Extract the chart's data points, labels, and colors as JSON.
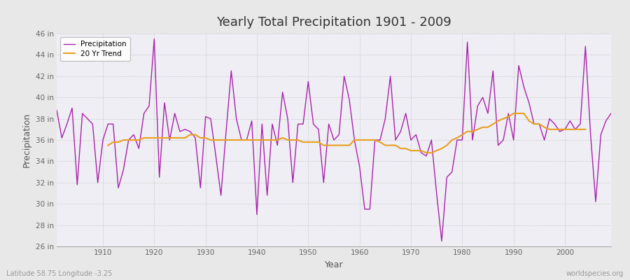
{
  "title": "Yearly Total Precipitation 1901 - 2009",
  "xlabel": "Year",
  "ylabel": "Precipitation",
  "ylim": [
    26,
    46
  ],
  "xlim": [
    1901,
    2009
  ],
  "yticks": [
    26,
    28,
    30,
    32,
    34,
    36,
    38,
    40,
    42,
    44,
    46
  ],
  "ytick_labels": [
    "26 in",
    "28 in",
    "30 in",
    "32 in",
    "34 in",
    "36 in",
    "38 in",
    "40 in",
    "42 in",
    "44 in",
    "46 in"
  ],
  "xticks": [
    1910,
    1920,
    1930,
    1940,
    1950,
    1960,
    1970,
    1980,
    1990,
    2000
  ],
  "precip_color": "#AA22AA",
  "trend_color": "#E8A020",
  "bg_color": "#E8E8E8",
  "plot_bg_color": "#EEEEF4",
  "grid_color": "#CCCCCC",
  "footnote_left": "Latitude 58.75 Longitude -3.25",
  "footnote_right": "worldspecies.org",
  "legend_precip": "Precipitation",
  "legend_trend": "20 Yr Trend",
  "years": [
    1901,
    1902,
    1903,
    1904,
    1905,
    1906,
    1907,
    1908,
    1909,
    1910,
    1911,
    1912,
    1913,
    1914,
    1915,
    1916,
    1917,
    1918,
    1919,
    1920,
    1921,
    1922,
    1923,
    1924,
    1925,
    1926,
    1927,
    1928,
    1929,
    1930,
    1931,
    1932,
    1933,
    1934,
    1935,
    1936,
    1937,
    1938,
    1939,
    1940,
    1941,
    1942,
    1943,
    1944,
    1945,
    1946,
    1947,
    1948,
    1949,
    1950,
    1951,
    1952,
    1953,
    1954,
    1955,
    1956,
    1957,
    1958,
    1959,
    1960,
    1961,
    1962,
    1963,
    1964,
    1965,
    1966,
    1967,
    1968,
    1969,
    1970,
    1971,
    1972,
    1973,
    1974,
    1975,
    1976,
    1977,
    1978,
    1979,
    1980,
    1981,
    1982,
    1983,
    1984,
    1985,
    1986,
    1987,
    1988,
    1989,
    1990,
    1991,
    1992,
    1993,
    1994,
    1995,
    1996,
    1997,
    1998,
    1999,
    2000,
    2001,
    2002,
    2003,
    2004,
    2005,
    2006,
    2007,
    2008,
    2009
  ],
  "precip": [
    38.8,
    36.2,
    37.5,
    39.0,
    31.8,
    38.5,
    38.0,
    37.5,
    32.0,
    36.0,
    37.5,
    37.5,
    31.5,
    33.2,
    36.0,
    36.5,
    35.2,
    38.5,
    39.2,
    45.5,
    32.5,
    39.5,
    36.0,
    38.5,
    36.8,
    37.0,
    36.8,
    36.2,
    31.5,
    38.2,
    38.0,
    34.5,
    30.8,
    36.8,
    42.5,
    38.0,
    36.0,
    36.0,
    37.8,
    29.0,
    37.5,
    30.8,
    37.5,
    35.5,
    40.5,
    38.0,
    32.0,
    37.5,
    37.5,
    41.5,
    37.5,
    37.0,
    32.0,
    37.5,
    36.0,
    36.5,
    42.0,
    39.8,
    36.0,
    33.5,
    29.5,
    29.5,
    36.0,
    36.0,
    38.0,
    42.0,
    36.0,
    36.8,
    38.5,
    36.0,
    36.5,
    34.8,
    34.5,
    36.0,
    31.0,
    26.5,
    32.5,
    33.0,
    36.0,
    36.0,
    45.2,
    36.0,
    39.2,
    40.0,
    38.5,
    42.5,
    35.5,
    36.0,
    38.5,
    36.0,
    43.0,
    41.0,
    39.5,
    37.5,
    37.5,
    36.0,
    38.0,
    37.5,
    36.8,
    37.0,
    37.8,
    37.0,
    37.5,
    44.8,
    36.5,
    30.2,
    36.5,
    37.8,
    38.5
  ],
  "trend": [
    null,
    null,
    null,
    null,
    null,
    null,
    null,
    null,
    null,
    null,
    35.5,
    35.8,
    35.8,
    36.0,
    36.0,
    36.0,
    36.0,
    36.2,
    36.2,
    36.2,
    36.2,
    36.2,
    36.2,
    36.2,
    36.2,
    36.2,
    36.5,
    36.5,
    36.2,
    36.2,
    36.0,
    36.0,
    36.0,
    36.0,
    36.0,
    36.0,
    36.0,
    36.0,
    36.0,
    36.0,
    36.0,
    36.0,
    36.0,
    36.0,
    36.2,
    36.0,
    36.0,
    36.0,
    35.8,
    35.8,
    35.8,
    35.8,
    35.5,
    35.5,
    35.5,
    35.5,
    35.5,
    35.5,
    36.0,
    36.0,
    36.0,
    36.0,
    36.0,
    35.8,
    35.5,
    35.5,
    35.5,
    35.2,
    35.2,
    35.0,
    35.0,
    35.0,
    34.8,
    34.8,
    35.0,
    35.2,
    35.5,
    36.0,
    36.2,
    36.5,
    36.8,
    36.8,
    37.0,
    37.2,
    37.2,
    37.5,
    37.8,
    38.0,
    38.2,
    38.5,
    38.5,
    38.5,
    37.8,
    37.5,
    37.5,
    37.2,
    37.0,
    37.0,
    37.0,
    37.0,
    37.0,
    37.0,
    37.0,
    37.0,
    null,
    null,
    null,
    null,
    null
  ]
}
